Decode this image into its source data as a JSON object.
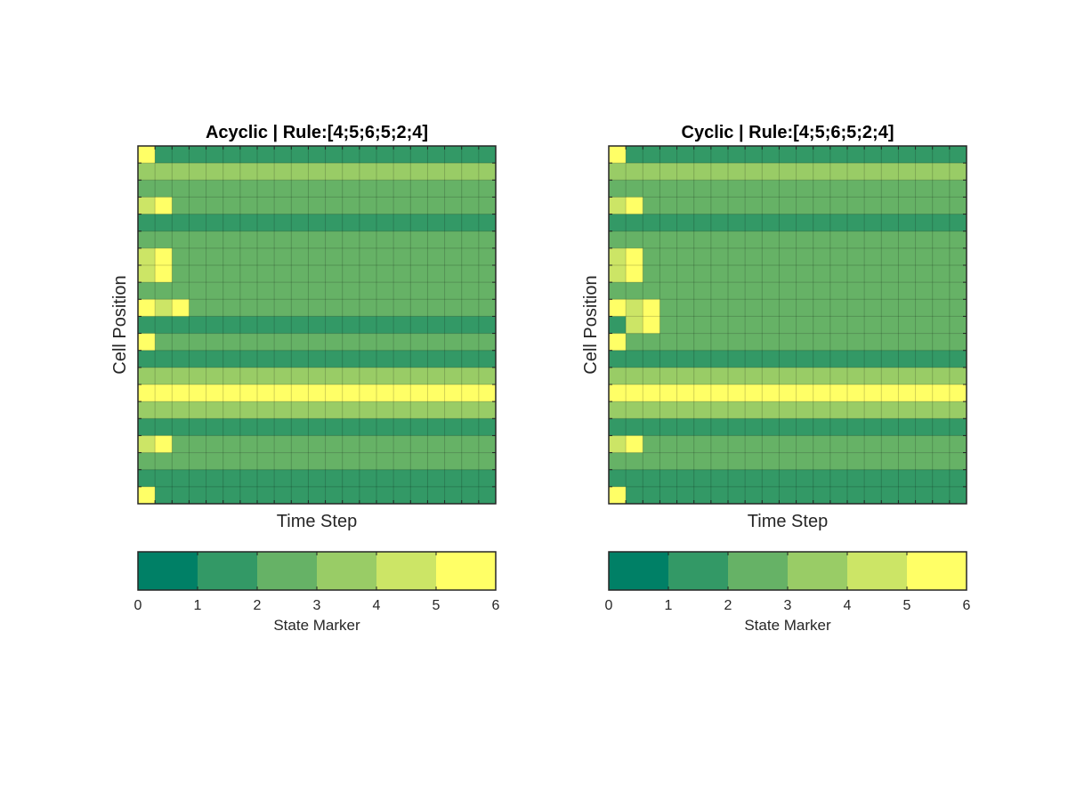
{
  "chart_data": [
    {
      "type": "heatmap",
      "title": "Acyclic | Rule:[4;5;6;5;2;4]",
      "xlabel": "Time Step",
      "ylabel": "Cell Position",
      "rows": 21,
      "cols": 21,
      "grid": true,
      "values": [
        [
          6,
          2,
          2,
          2,
          2,
          2,
          2,
          2,
          2,
          2,
          2,
          2,
          2,
          2,
          2,
          2,
          2,
          2,
          2,
          2,
          2
        ],
        [
          4,
          4,
          4,
          4,
          4,
          4,
          4,
          4,
          4,
          4,
          4,
          4,
          4,
          4,
          4,
          4,
          4,
          4,
          4,
          4,
          4
        ],
        [
          3,
          3,
          3,
          3,
          3,
          3,
          3,
          3,
          3,
          3,
          3,
          3,
          3,
          3,
          3,
          3,
          3,
          3,
          3,
          3,
          3
        ],
        [
          5,
          6,
          3,
          3,
          3,
          3,
          3,
          3,
          3,
          3,
          3,
          3,
          3,
          3,
          3,
          3,
          3,
          3,
          3,
          3,
          3
        ],
        [
          2,
          2,
          2,
          2,
          2,
          2,
          2,
          2,
          2,
          2,
          2,
          2,
          2,
          2,
          2,
          2,
          2,
          2,
          2,
          2,
          2
        ],
        [
          3,
          3,
          3,
          3,
          3,
          3,
          3,
          3,
          3,
          3,
          3,
          3,
          3,
          3,
          3,
          3,
          3,
          3,
          3,
          3,
          3
        ],
        [
          5,
          6,
          3,
          3,
          3,
          3,
          3,
          3,
          3,
          3,
          3,
          3,
          3,
          3,
          3,
          3,
          3,
          3,
          3,
          3,
          3
        ],
        [
          5,
          6,
          3,
          3,
          3,
          3,
          3,
          3,
          3,
          3,
          3,
          3,
          3,
          3,
          3,
          3,
          3,
          3,
          3,
          3,
          3
        ],
        [
          3,
          3,
          3,
          3,
          3,
          3,
          3,
          3,
          3,
          3,
          3,
          3,
          3,
          3,
          3,
          3,
          3,
          3,
          3,
          3,
          3
        ],
        [
          6,
          5,
          6,
          3,
          3,
          3,
          3,
          3,
          3,
          3,
          3,
          3,
          3,
          3,
          3,
          3,
          3,
          3,
          3,
          3,
          3
        ],
        [
          2,
          2,
          2,
          2,
          2,
          2,
          2,
          2,
          2,
          2,
          2,
          2,
          2,
          2,
          2,
          2,
          2,
          2,
          2,
          2,
          2
        ],
        [
          6,
          3,
          3,
          3,
          3,
          3,
          3,
          3,
          3,
          3,
          3,
          3,
          3,
          3,
          3,
          3,
          3,
          3,
          3,
          3,
          3
        ],
        [
          2,
          2,
          2,
          2,
          2,
          2,
          2,
          2,
          2,
          2,
          2,
          2,
          2,
          2,
          2,
          2,
          2,
          2,
          2,
          2,
          2
        ],
        [
          4,
          4,
          4,
          4,
          4,
          4,
          4,
          4,
          4,
          4,
          4,
          4,
          4,
          4,
          4,
          4,
          4,
          4,
          4,
          4,
          4
        ],
        [
          6,
          6,
          6,
          6,
          6,
          6,
          6,
          6,
          6,
          6,
          6,
          6,
          6,
          6,
          6,
          6,
          6,
          6,
          6,
          6,
          6
        ],
        [
          4,
          4,
          4,
          4,
          4,
          4,
          4,
          4,
          4,
          4,
          4,
          4,
          4,
          4,
          4,
          4,
          4,
          4,
          4,
          4,
          4
        ],
        [
          2,
          2,
          2,
          2,
          2,
          2,
          2,
          2,
          2,
          2,
          2,
          2,
          2,
          2,
          2,
          2,
          2,
          2,
          2,
          2,
          2
        ],
        [
          5,
          6,
          3,
          3,
          3,
          3,
          3,
          3,
          3,
          3,
          3,
          3,
          3,
          3,
          3,
          3,
          3,
          3,
          3,
          3,
          3
        ],
        [
          3,
          3,
          3,
          3,
          3,
          3,
          3,
          3,
          3,
          3,
          3,
          3,
          3,
          3,
          3,
          3,
          3,
          3,
          3,
          3,
          3
        ],
        [
          2,
          2,
          2,
          2,
          2,
          2,
          2,
          2,
          2,
          2,
          2,
          2,
          2,
          2,
          2,
          2,
          2,
          2,
          2,
          2,
          2
        ],
        [
          6,
          2,
          2,
          2,
          2,
          2,
          2,
          2,
          2,
          2,
          2,
          2,
          2,
          2,
          2,
          2,
          2,
          2,
          2,
          2,
          2
        ]
      ],
      "colorbar": {
        "label": "State Marker",
        "ticks": [
          "0",
          "1",
          "2",
          "3",
          "4",
          "5",
          "6"
        ],
        "colors": [
          "#008066",
          "#339966",
          "#66b266",
          "#99cc66",
          "#cce566",
          "#ffff66"
        ]
      }
    },
    {
      "type": "heatmap",
      "title": "Cyclic | Rule:[4;5;6;5;2;4]",
      "xlabel": "Time Step",
      "ylabel": "Cell Position",
      "rows": 21,
      "cols": 21,
      "grid": true,
      "values": [
        [
          6,
          2,
          2,
          2,
          2,
          2,
          2,
          2,
          2,
          2,
          2,
          2,
          2,
          2,
          2,
          2,
          2,
          2,
          2,
          2,
          2
        ],
        [
          4,
          4,
          4,
          4,
          4,
          4,
          4,
          4,
          4,
          4,
          4,
          4,
          4,
          4,
          4,
          4,
          4,
          4,
          4,
          4,
          4
        ],
        [
          3,
          3,
          3,
          3,
          3,
          3,
          3,
          3,
          3,
          3,
          3,
          3,
          3,
          3,
          3,
          3,
          3,
          3,
          3,
          3,
          3
        ],
        [
          5,
          6,
          3,
          3,
          3,
          3,
          3,
          3,
          3,
          3,
          3,
          3,
          3,
          3,
          3,
          3,
          3,
          3,
          3,
          3,
          3
        ],
        [
          2,
          2,
          2,
          2,
          2,
          2,
          2,
          2,
          2,
          2,
          2,
          2,
          2,
          2,
          2,
          2,
          2,
          2,
          2,
          2,
          2
        ],
        [
          3,
          3,
          3,
          3,
          3,
          3,
          3,
          3,
          3,
          3,
          3,
          3,
          3,
          3,
          3,
          3,
          3,
          3,
          3,
          3,
          3
        ],
        [
          5,
          6,
          3,
          3,
          3,
          3,
          3,
          3,
          3,
          3,
          3,
          3,
          3,
          3,
          3,
          3,
          3,
          3,
          3,
          3,
          3
        ],
        [
          5,
          6,
          3,
          3,
          3,
          3,
          3,
          3,
          3,
          3,
          3,
          3,
          3,
          3,
          3,
          3,
          3,
          3,
          3,
          3,
          3
        ],
        [
          3,
          3,
          3,
          3,
          3,
          3,
          3,
          3,
          3,
          3,
          3,
          3,
          3,
          3,
          3,
          3,
          3,
          3,
          3,
          3,
          3
        ],
        [
          6,
          5,
          6,
          3,
          3,
          3,
          3,
          3,
          3,
          3,
          3,
          3,
          3,
          3,
          3,
          3,
          3,
          3,
          3,
          3,
          3
        ],
        [
          2,
          5,
          6,
          3,
          3,
          3,
          3,
          3,
          3,
          3,
          3,
          3,
          3,
          3,
          3,
          3,
          3,
          3,
          3,
          3,
          3
        ],
        [
          6,
          3,
          3,
          3,
          3,
          3,
          3,
          3,
          3,
          3,
          3,
          3,
          3,
          3,
          3,
          3,
          3,
          3,
          3,
          3,
          3
        ],
        [
          2,
          2,
          2,
          2,
          2,
          2,
          2,
          2,
          2,
          2,
          2,
          2,
          2,
          2,
          2,
          2,
          2,
          2,
          2,
          2,
          2
        ],
        [
          4,
          4,
          4,
          4,
          4,
          4,
          4,
          4,
          4,
          4,
          4,
          4,
          4,
          4,
          4,
          4,
          4,
          4,
          4,
          4,
          4
        ],
        [
          6,
          6,
          6,
          6,
          6,
          6,
          6,
          6,
          6,
          6,
          6,
          6,
          6,
          6,
          6,
          6,
          6,
          6,
          6,
          6,
          6
        ],
        [
          4,
          4,
          4,
          4,
          4,
          4,
          4,
          4,
          4,
          4,
          4,
          4,
          4,
          4,
          4,
          4,
          4,
          4,
          4,
          4,
          4
        ],
        [
          2,
          2,
          2,
          2,
          2,
          2,
          2,
          2,
          2,
          2,
          2,
          2,
          2,
          2,
          2,
          2,
          2,
          2,
          2,
          2,
          2
        ],
        [
          5,
          6,
          3,
          3,
          3,
          3,
          3,
          3,
          3,
          3,
          3,
          3,
          3,
          3,
          3,
          3,
          3,
          3,
          3,
          3,
          3
        ],
        [
          3,
          3,
          3,
          3,
          3,
          3,
          3,
          3,
          3,
          3,
          3,
          3,
          3,
          3,
          3,
          3,
          3,
          3,
          3,
          3,
          3
        ],
        [
          2,
          2,
          2,
          2,
          2,
          2,
          2,
          2,
          2,
          2,
          2,
          2,
          2,
          2,
          2,
          2,
          2,
          2,
          2,
          2,
          2
        ],
        [
          6,
          2,
          2,
          2,
          2,
          2,
          2,
          2,
          2,
          2,
          2,
          2,
          2,
          2,
          2,
          2,
          2,
          2,
          2,
          2,
          2
        ]
      ],
      "colorbar": {
        "label": "State Marker",
        "ticks": [
          "0",
          "1",
          "2",
          "3",
          "4",
          "5",
          "6"
        ],
        "colors": [
          "#008066",
          "#339966",
          "#66b266",
          "#99cc66",
          "#cce566",
          "#ffff66"
        ]
      }
    }
  ]
}
